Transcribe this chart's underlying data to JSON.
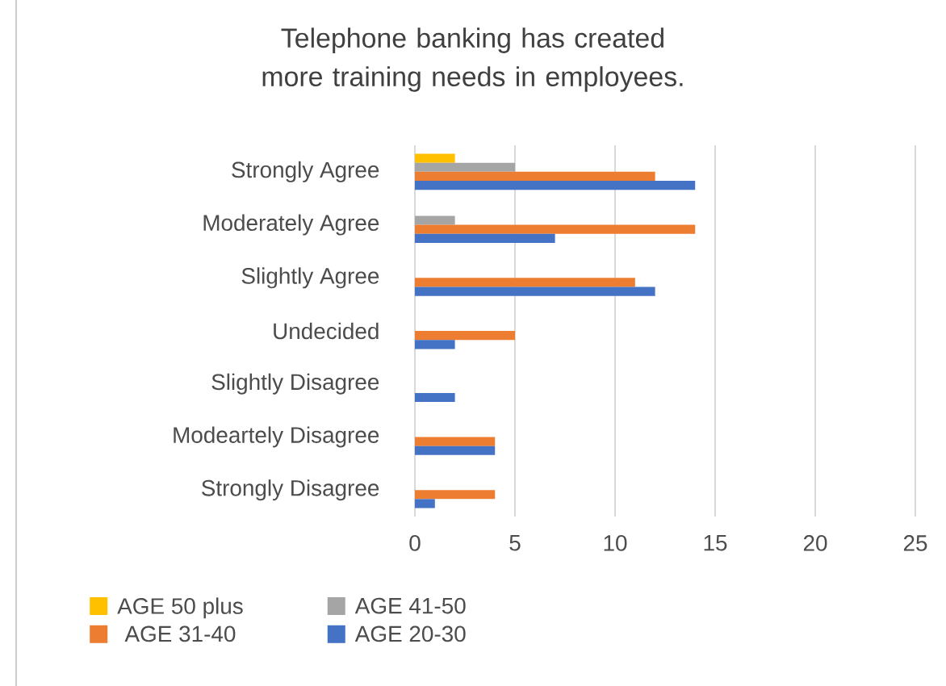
{
  "chart_data": {
    "type": "bar",
    "orientation": "horizontal",
    "title": "Telephone banking has created more training needs in employees.",
    "categories": [
      "Strongly Agree",
      "Moderately Agree",
      "Slightly Agree",
      "Undecided",
      "Slightly Disagree",
      "Modeartely Disagree",
      "Strongly Disagree"
    ],
    "series": [
      {
        "name": "AGE 50 plus",
        "color": "#ffc000",
        "values": [
          2,
          0,
          0,
          0,
          0,
          0,
          0
        ]
      },
      {
        "name": "AGE 41-50",
        "color": "#a5a5a5",
        "values": [
          5,
          2,
          0,
          0,
          0,
          0,
          0
        ]
      },
      {
        "name": "AGE 31-40",
        "color": "#ed7d31",
        "values": [
          12,
          14,
          11,
          5,
          0,
          4,
          4
        ]
      },
      {
        "name": "AGE 20-30",
        "color": "#4472c4",
        "values": [
          14,
          7,
          12,
          2,
          2,
          4,
          1
        ]
      }
    ],
    "xlim": [
      0,
      25
    ],
    "xticks": [
      0,
      5,
      10,
      15,
      20,
      25
    ],
    "grid": "x",
    "legend": "bottom"
  }
}
